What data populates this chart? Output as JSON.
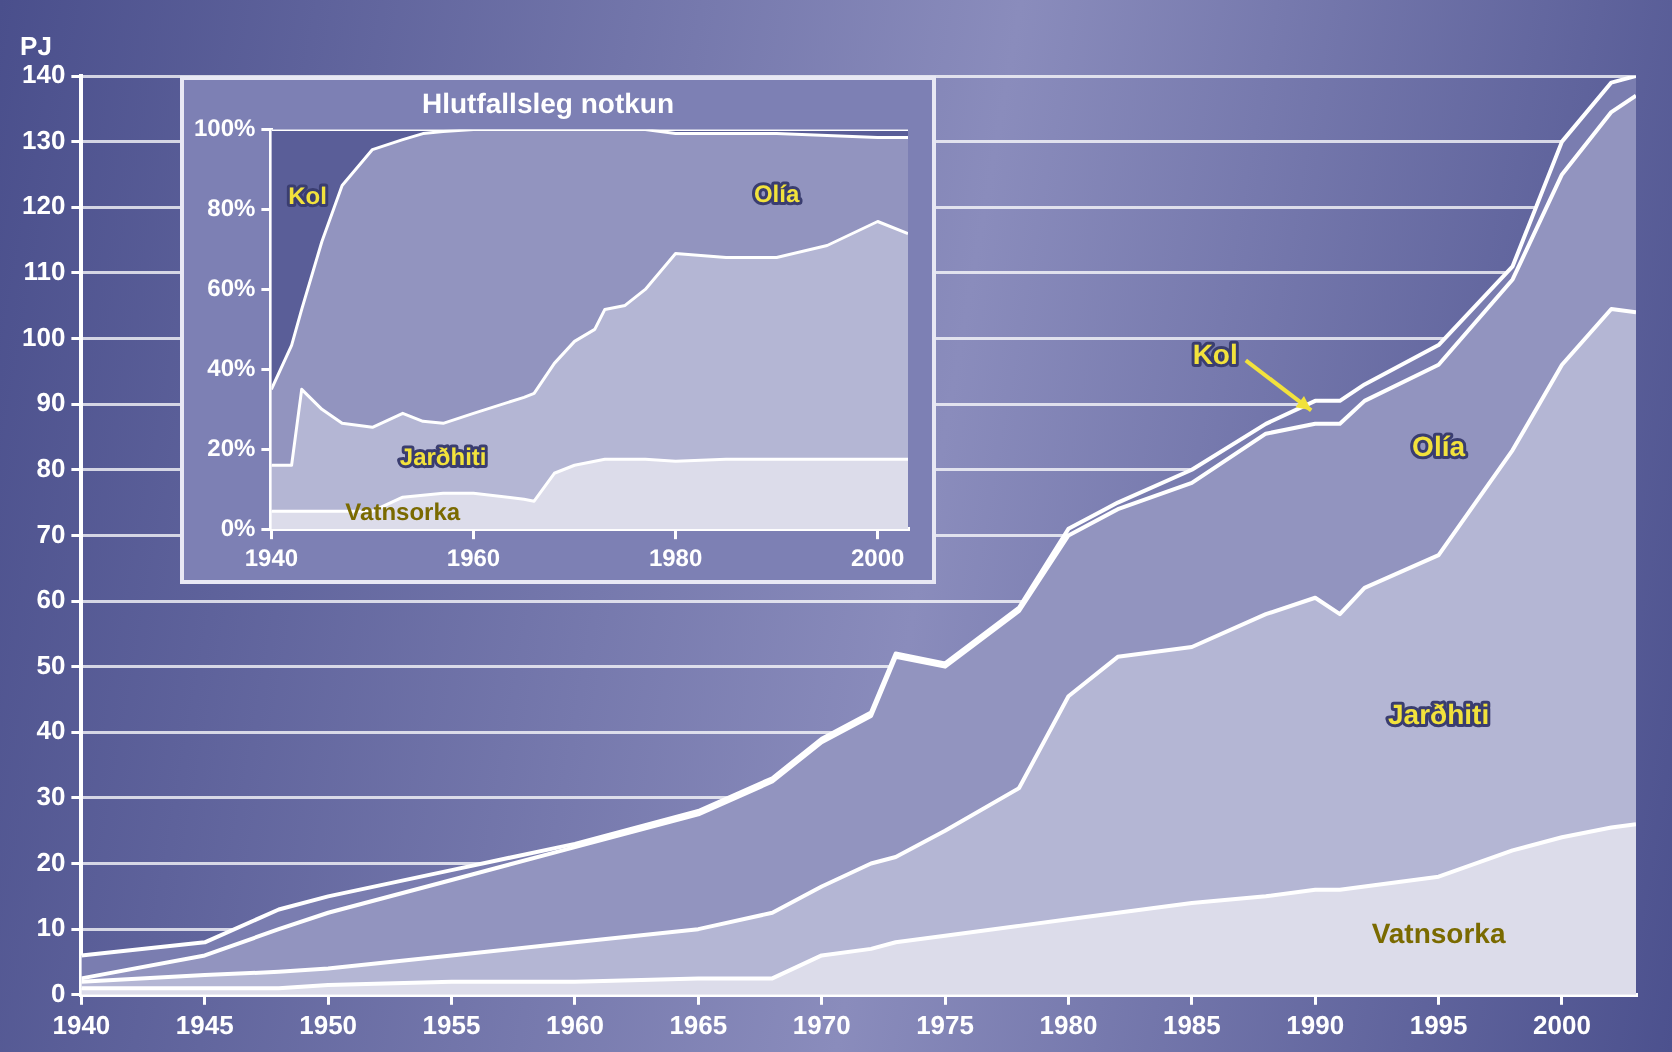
{
  "chart_data": [
    {
      "type": "area",
      "stacked": true,
      "ylabel": "PJ",
      "grid": "y",
      "x": [
        1940,
        1945,
        1948,
        1950,
        1955,
        1960,
        1965,
        1968,
        1970,
        1972,
        1973,
        1975,
        1978,
        1980,
        1982,
        1985,
        1988,
        1990,
        1991,
        1992,
        1995,
        1998,
        2000,
        2002,
        2003
      ],
      "series": [
        {
          "name": "Vatnsorka",
          "color": "#dcdcea",
          "values": [
            1,
            1,
            1,
            1.5,
            2,
            2,
            2.5,
            2.5,
            6,
            7,
            8,
            9,
            10.5,
            11.5,
            12.5,
            14,
            15,
            16,
            16,
            16.5,
            18,
            22,
            24,
            25.5,
            26
          ]
        },
        {
          "name": "Jarðhiti",
          "color": "#b4b6d4",
          "values": [
            1,
            2,
            2.5,
            2.5,
            4,
            6,
            7.5,
            10,
            10.5,
            13,
            13,
            16,
            21,
            34,
            39,
            39,
            43,
            44.5,
            42,
            45.5,
            49,
            61,
            72,
            79,
            78
          ]
        },
        {
          "name": "Olía",
          "color": "#9294bf",
          "values": [
            0.5,
            3,
            6.5,
            8.5,
            11.5,
            14.5,
            17.5,
            20,
            22,
            22.5,
            30.5,
            25,
            27,
            24.5,
            22.5,
            25,
            27.5,
            26.5,
            29,
            28.5,
            29,
            26,
            29,
            30,
            33
          ]
        },
        {
          "name": "Kol",
          "color": "#7a7db0",
          "values": [
            3.5,
            2,
            3,
            2.5,
            1.5,
            0.5,
            0.5,
            0.5,
            0.5,
            0.5,
            0.5,
            0.5,
            0.5,
            1,
            1,
            2,
            1.5,
            3.5,
            3.5,
            2.5,
            3,
            2,
            5,
            4.5,
            3
          ]
        }
      ],
      "xlim": [
        1940,
        2003
      ],
      "xticks": [
        1940,
        1945,
        1950,
        1955,
        1960,
        1965,
        1970,
        1975,
        1980,
        1985,
        1990,
        1995,
        2000
      ],
      "ylim": [
        0,
        140
      ],
      "yticks": [
        0,
        10,
        20,
        30,
        40,
        50,
        60,
        70,
        80,
        90,
        100,
        110,
        120,
        130,
        140
      ]
    },
    {
      "type": "area",
      "stacked": true,
      "title": "Hlutfallsleg notkun",
      "x": [
        1940,
        1942,
        1943,
        1945,
        1947,
        1950,
        1953,
        1955,
        1957,
        1960,
        1965,
        1966,
        1968,
        1970,
        1972,
        1973,
        1975,
        1977,
        1980,
        1985,
        1990,
        1995,
        2000,
        2003
      ],
      "series": [
        {
          "name": "Vatnsorka",
          "color": "#dcdcea",
          "values": [
            4.5,
            4.5,
            4.5,
            4.5,
            4.5,
            4.5,
            8,
            8.5,
            9,
            9,
            7.5,
            7,
            14,
            16,
            17,
            17.5,
            17.5,
            17.5,
            17,
            17.5,
            17.5,
            17.5,
            17.5,
            17.5
          ]
        },
        {
          "name": "Jarðhiti",
          "color": "#b4b6d4",
          "values": [
            11.5,
            11.5,
            30.5,
            25.5,
            22,
            21,
            21,
            18.5,
            17.5,
            20,
            25.5,
            27,
            27.5,
            31,
            33,
            37.5,
            38.5,
            42.5,
            52,
            50.5,
            50.5,
            53.5,
            59.5,
            56.5
          ]
        },
        {
          "name": "Olía",
          "color": "#9294bf",
          "values": [
            19,
            30,
            20,
            42,
            59.5,
            69.5,
            68.5,
            72,
            73,
            71,
            67,
            66,
            58.5,
            53,
            50,
            45,
            44,
            40,
            30,
            31,
            31,
            27.5,
            21,
            24
          ]
        },
        {
          "name": "Kol",
          "color": "#5a5e98",
          "values": [
            65,
            54,
            45,
            28,
            14,
            5,
            2.5,
            1,
            0.5,
            0,
            0,
            0,
            0,
            0,
            0,
            0,
            0,
            0,
            1,
            1,
            1,
            1.5,
            2,
            2
          ]
        }
      ],
      "xlim": [
        1940,
        2003
      ],
      "xticks": [
        1940,
        1960,
        1980,
        2000
      ],
      "ylim": [
        0,
        100
      ],
      "yticks": [
        {
          "value": 0,
          "label": "0%"
        },
        {
          "value": 20,
          "label": "20%"
        },
        {
          "value": 40,
          "label": "40%"
        },
        {
          "value": 60,
          "label": "60%"
        },
        {
          "value": 80,
          "label": "80%"
        },
        {
          "value": 100,
          "label": "100%"
        }
      ]
    }
  ]
}
